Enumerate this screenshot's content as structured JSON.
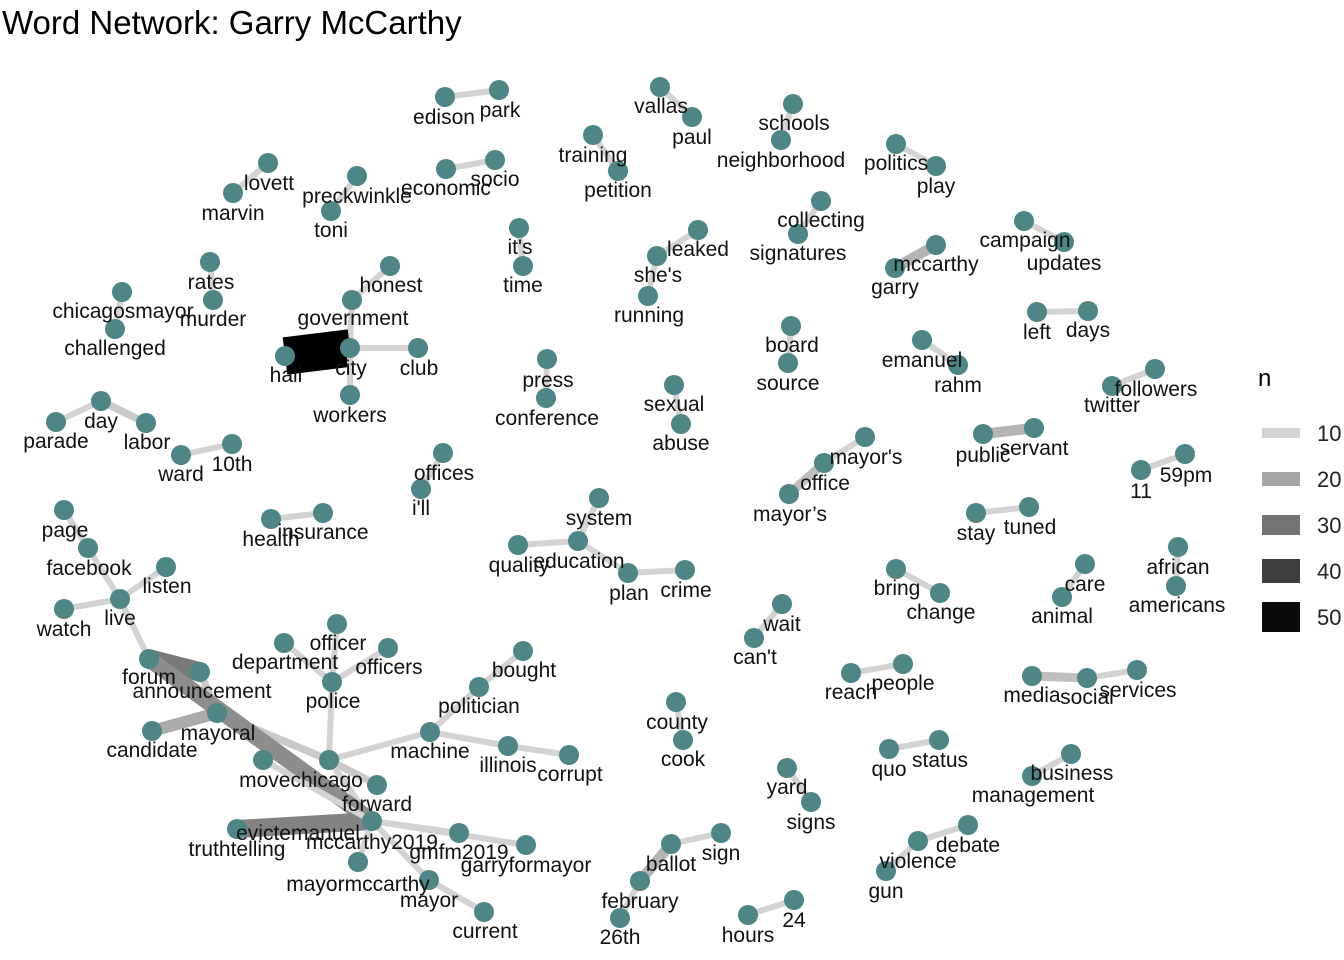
{
  "title": "Word Network: Garry McCarthy",
  "colors": {
    "node": "#4e8585",
    "text": "#111111",
    "background": "#ffffff"
  },
  "legend": {
    "title": "n",
    "items": [
      {
        "label": "10",
        "value": 10,
        "color": "#d3d3d3"
      },
      {
        "label": "20",
        "value": 20,
        "color": "#a6a6a6"
      },
      {
        "label": "30",
        "value": 30,
        "color": "#737373"
      },
      {
        "label": "40",
        "value": 40,
        "color": "#3d3d3d"
      },
      {
        "label": "50",
        "value": 50,
        "color": "#0a0a0a"
      }
    ]
  },
  "nodes": [
    "edison",
    "park",
    "vallas",
    "paul",
    "schools",
    "neighborhood",
    "training",
    "petition",
    "politics",
    "play",
    "lovett",
    "marvin",
    "preckwinkle",
    "toni",
    "economic",
    "socio",
    "collecting",
    "signatures",
    "it's",
    "time",
    "leaked",
    "she's",
    "running",
    "campaign",
    "updates",
    "mccarthy",
    "garry",
    "rates",
    "murder",
    "chicagosmayor",
    "challenged",
    "honest",
    "government",
    "hall",
    "city",
    "club",
    "workers",
    "left",
    "days",
    "board",
    "source",
    "emanuel",
    "rahm",
    "followers",
    "twitter",
    "press",
    "conference",
    "sexual",
    "abuse",
    "day",
    "parade",
    "labor",
    "ward",
    "10th",
    "mayor's",
    "office",
    "mayor’s",
    "public",
    "servant",
    "offices",
    "i'll",
    "11",
    "59pm",
    "system",
    "education",
    "quality",
    "plan",
    "crime",
    "stay",
    "tuned",
    "health",
    "insurance",
    "page",
    "facebook",
    "listen",
    "live",
    "watch",
    "african",
    "americans",
    "bring",
    "change",
    "care",
    "animal",
    "wait",
    "can't",
    "forum",
    "announcement",
    "mayoral",
    "candidate",
    "department",
    "officer",
    "officers",
    "police",
    "bought",
    "politician",
    "machine",
    "illinois",
    "corrupt",
    "movechicago",
    "forward",
    "reach",
    "people",
    "media",
    "social",
    "services",
    "county",
    "cook",
    "quo",
    "status",
    "business",
    "management",
    "evictemanuel",
    "truthtelling",
    "mccarthy2019",
    "gmfm2019",
    "garryformayor",
    "mayormccarthy",
    "mayor",
    "current",
    "yard",
    "signs",
    "ballot",
    "sign",
    "february",
    "26th",
    "debate",
    "violence",
    "gun",
    "hours",
    "24"
  ],
  "edges": [
    {
      "from": "edison",
      "to": "park",
      "n": 10
    },
    {
      "from": "vallas",
      "to": "paul",
      "n": 10
    },
    {
      "from": "schools",
      "to": "neighborhood",
      "n": 10
    },
    {
      "from": "training",
      "to": "petition",
      "n": 10
    },
    {
      "from": "politics",
      "to": "play",
      "n": 10
    },
    {
      "from": "lovett",
      "to": "marvin",
      "n": 10
    },
    {
      "from": "preckwinkle",
      "to": "toni",
      "n": 10
    },
    {
      "from": "economic",
      "to": "socio",
      "n": 10
    },
    {
      "from": "collecting",
      "to": "signatures",
      "n": 10
    },
    {
      "from": "it's",
      "to": "time",
      "n": 10
    },
    {
      "from": "leaked",
      "to": "she's",
      "n": 10
    },
    {
      "from": "she's",
      "to": "running",
      "n": 10
    },
    {
      "from": "campaign",
      "to": "updates",
      "n": 10
    },
    {
      "from": "mccarthy",
      "to": "garry",
      "n": 16
    },
    {
      "from": "rates",
      "to": "murder",
      "n": 10
    },
    {
      "from": "chicagosmayor",
      "to": "challenged",
      "n": 10
    },
    {
      "from": "honest",
      "to": "government",
      "n": 10
    },
    {
      "from": "government",
      "to": "city",
      "n": 10
    },
    {
      "from": "hall",
      "to": "city",
      "n": 52
    },
    {
      "from": "city",
      "to": "club",
      "n": 10
    },
    {
      "from": "city",
      "to": "workers",
      "n": 10
    },
    {
      "from": "left",
      "to": "days",
      "n": 10
    },
    {
      "from": "board",
      "to": "source",
      "n": 10
    },
    {
      "from": "emanuel",
      "to": "rahm",
      "n": 10
    },
    {
      "from": "followers",
      "to": "twitter",
      "n": 10
    },
    {
      "from": "press",
      "to": "conference",
      "n": 10
    },
    {
      "from": "sexual",
      "to": "abuse",
      "n": 10
    },
    {
      "from": "parade",
      "to": "day",
      "n": 10
    },
    {
      "from": "day",
      "to": "labor",
      "n": 12
    },
    {
      "from": "ward",
      "to": "10th",
      "n": 10
    },
    {
      "from": "mayor's",
      "to": "office",
      "n": 10
    },
    {
      "from": "office",
      "to": "mayor’s",
      "n": 14
    },
    {
      "from": "public",
      "to": "servant",
      "n": 16
    },
    {
      "from": "offices",
      "to": "i'll",
      "n": 10
    },
    {
      "from": "11",
      "to": "59pm",
      "n": 10
    },
    {
      "from": "system",
      "to": "education",
      "n": 10
    },
    {
      "from": "quality",
      "to": "education",
      "n": 10
    },
    {
      "from": "education",
      "to": "plan",
      "n": 10
    },
    {
      "from": "plan",
      "to": "crime",
      "n": 10
    },
    {
      "from": "stay",
      "to": "tuned",
      "n": 10
    },
    {
      "from": "health",
      "to": "insurance",
      "n": 10
    },
    {
      "from": "page",
      "to": "facebook",
      "n": 10
    },
    {
      "from": "facebook",
      "to": "live",
      "n": 10
    },
    {
      "from": "listen",
      "to": "live",
      "n": 10
    },
    {
      "from": "watch",
      "to": "live",
      "n": 10
    },
    {
      "from": "live",
      "to": "forum",
      "n": 10
    },
    {
      "from": "african",
      "to": "americans",
      "n": 10
    },
    {
      "from": "bring",
      "to": "change",
      "n": 10
    },
    {
      "from": "care",
      "to": "animal",
      "n": 10
    },
    {
      "from": "wait",
      "to": "can't",
      "n": 10
    },
    {
      "from": "forum",
      "to": "announcement",
      "n": 28
    },
    {
      "from": "announcement",
      "to": "mayoral",
      "n": 12
    },
    {
      "from": "candidate",
      "to": "mayoral",
      "n": 18
    },
    {
      "from": "mayoral",
      "to": "movechicago",
      "n": 12
    },
    {
      "from": "department",
      "to": "police",
      "n": 10
    },
    {
      "from": "officer",
      "to": "police",
      "n": 10
    },
    {
      "from": "officers",
      "to": "police",
      "n": 10
    },
    {
      "from": "police",
      "to": "movechicago",
      "n": 10
    },
    {
      "from": "bought",
      "to": "politician",
      "n": 10
    },
    {
      "from": "politician",
      "to": "machine",
      "n": 10
    },
    {
      "from": "machine",
      "to": "movechicago",
      "n": 10
    },
    {
      "from": "machine",
      "to": "illinois",
      "n": 10
    },
    {
      "from": "illinois",
      "to": "corrupt",
      "n": 10
    },
    {
      "from": "movechicago",
      "to": "forward",
      "n": 12
    },
    {
      "from": "reach",
      "to": "people",
      "n": 10
    },
    {
      "from": "media",
      "to": "social",
      "n": 14
    },
    {
      "from": "social",
      "to": "services",
      "n": 10
    },
    {
      "from": "county",
      "to": "cook",
      "n": 10
    },
    {
      "from": "quo",
      "to": "status",
      "n": 10
    },
    {
      "from": "business",
      "to": "management",
      "n": 10
    },
    {
      "from": "movechicago",
      "to": "mccarthy2019",
      "n": 10
    },
    {
      "from": "forum",
      "to": "mccarthy2019",
      "n": 24
    },
    {
      "from": "evictemanuel",
      "to": "mccarthy2019",
      "n": 26
    },
    {
      "from": "truthtelling",
      "to": "mccarthy2019",
      "n": 10
    },
    {
      "from": "mccarthy2019",
      "to": "gmfm2019",
      "n": 10
    },
    {
      "from": "mccarthy2019",
      "to": "garryformayor",
      "n": 10
    },
    {
      "from": "mccarthy2019",
      "to": "mayormccarthy",
      "n": 10
    },
    {
      "from": "mccarthy2019",
      "to": "mayor",
      "n": 10
    },
    {
      "from": "mayor",
      "to": "current",
      "n": 10
    },
    {
      "from": "yard",
      "to": "signs",
      "n": 10
    },
    {
      "from": "ballot",
      "to": "sign",
      "n": 10
    },
    {
      "from": "ballot",
      "to": "february",
      "n": 16
    },
    {
      "from": "february",
      "to": "26th",
      "n": 10
    },
    {
      "from": "debate",
      "to": "violence",
      "n": 10
    },
    {
      "from": "violence",
      "to": "gun",
      "n": 10
    },
    {
      "from": "hours",
      "to": "24",
      "n": 10
    }
  ]
}
